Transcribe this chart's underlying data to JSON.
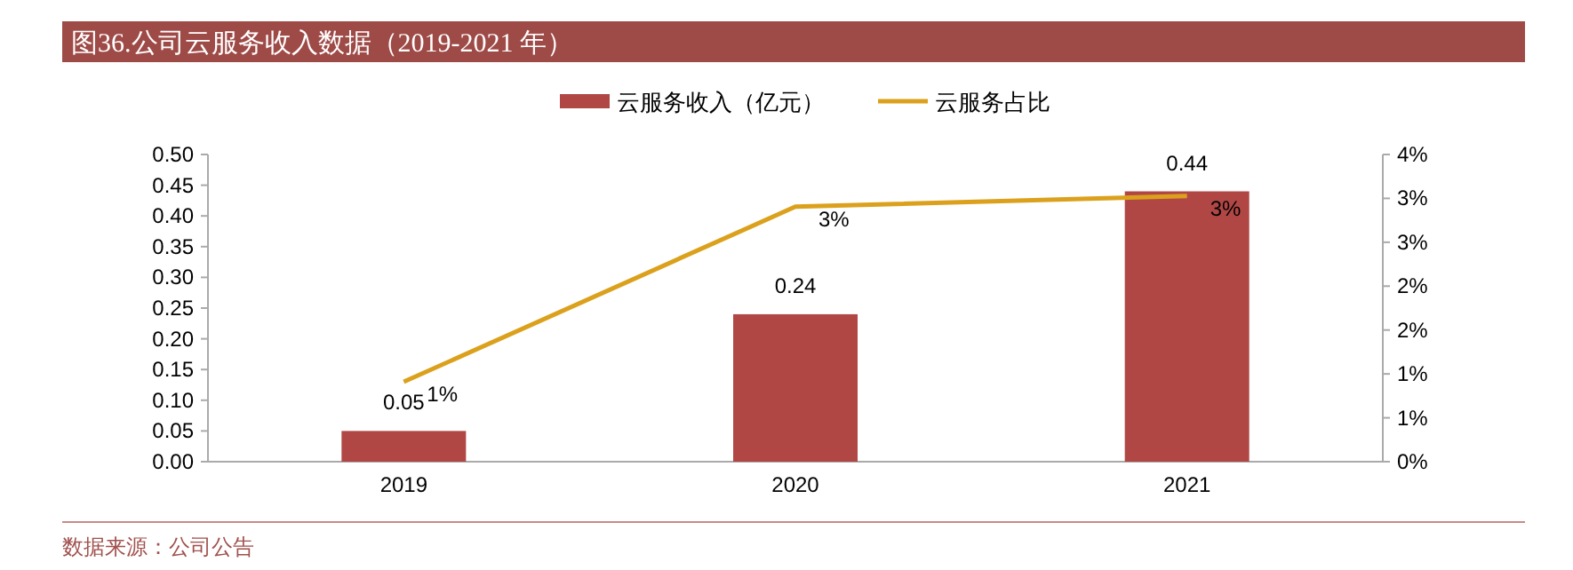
{
  "chart_data": {
    "type": "bar",
    "title": "图36.公司云服务收入数据（2019-2021 年）",
    "categories": [
      "2019",
      "2020",
      "2021"
    ],
    "series": [
      {
        "name": "云服务收入（亿元）",
        "color": "#b04745",
        "values": [
          0.05,
          0.24,
          0.44
        ]
      },
      {
        "name": "云服务占比",
        "type": "line",
        "axis": "y2",
        "color": "#dba11d",
        "values": [
          1.04,
          3.32,
          3.46
        ],
        "value_labels": [
          "1%",
          "3%",
          "3%"
        ]
      }
    ],
    "data_labels": true,
    "ylim": [
      0,
      0.5
    ],
    "yticks": [
      {
        "value": 0,
        "label": "0.00"
      },
      {
        "value": 0.05,
        "label": "0.05"
      },
      {
        "value": 0.1,
        "label": "0.10"
      },
      {
        "value": 0.15,
        "label": "0.15"
      },
      {
        "value": 0.2,
        "label": "0.20"
      },
      {
        "value": 0.25,
        "label": "0.25"
      },
      {
        "value": 0.3,
        "label": "0.30"
      },
      {
        "value": 0.35,
        "label": "0.35"
      },
      {
        "value": 0.4,
        "label": "0.40"
      },
      {
        "value": 0.45,
        "label": "0.45"
      },
      {
        "value": 0.5,
        "label": "0.50"
      }
    ],
    "y2lim": [
      0,
      4
    ],
    "y2ticks": [
      {
        "value": 0,
        "label": "0%"
      },
      {
        "value": 0.5714,
        "label": "1%"
      },
      {
        "value": 1.1429,
        "label": "1%"
      },
      {
        "value": 1.7143,
        "label": "2%"
      },
      {
        "value": 2.2857,
        "label": "2%"
      },
      {
        "value": 2.8571,
        "label": "3%"
      },
      {
        "value": 3.4286,
        "label": "3%"
      },
      {
        "value": 4,
        "label": "4%"
      }
    ],
    "legend": "top",
    "grid": false,
    "marker": "none",
    "line_style": "solid",
    "annotations": [
      "数据来源：公司公告"
    ]
  }
}
